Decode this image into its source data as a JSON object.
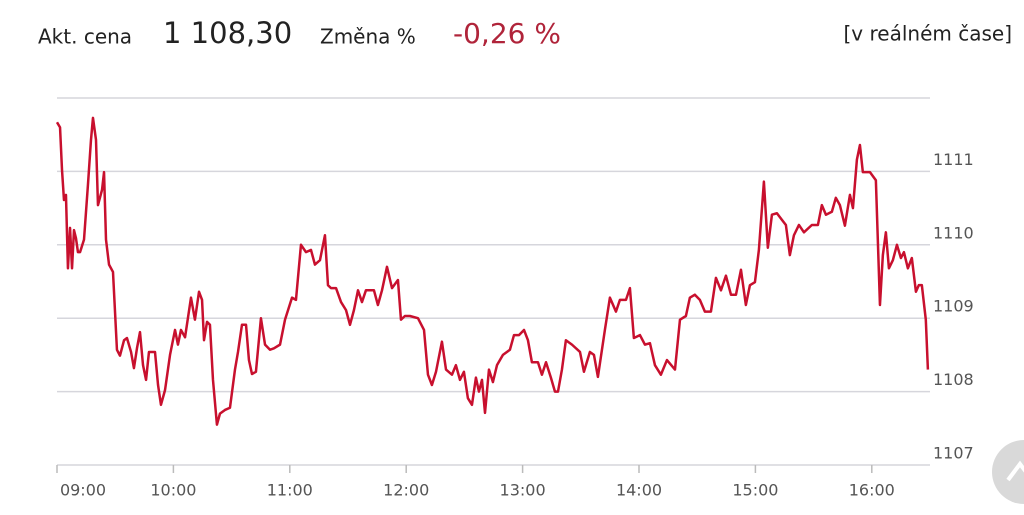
{
  "header": {
    "price_label": "Akt. cena",
    "price": "1 108,30",
    "change_label": "Změna %",
    "change": "-0,26 %",
    "mode": "[v reálném čase]"
  },
  "chart_data": {
    "type": "line",
    "color": "#c8102e",
    "grid": true,
    "xlim": [
      9,
      16.5
    ],
    "ylim": [
      1107,
      1112
    ],
    "xticks": [
      {
        "value": 9,
        "label": "09:00"
      },
      {
        "value": 10,
        "label": "10:00"
      },
      {
        "value": 11,
        "label": "11:00"
      },
      {
        "value": 12,
        "label": "12:00"
      },
      {
        "value": 13,
        "label": "13:00"
      },
      {
        "value": 14,
        "label": "14:00"
      },
      {
        "value": 15,
        "label": "15:00"
      },
      {
        "value": 16,
        "label": "16:00"
      }
    ],
    "yticks": [
      1107,
      1108,
      1109,
      1110,
      1111
    ],
    "x": [
      9.0,
      9.026,
      9.043,
      9.06,
      9.077,
      9.094,
      9.112,
      9.129,
      9.146,
      9.163,
      9.18,
      9.198,
      9.232,
      9.266,
      9.292,
      9.309,
      9.335,
      9.352,
      9.387,
      9.404,
      9.421,
      9.447,
      9.481,
      9.515,
      9.541,
      9.576,
      9.601,
      9.636,
      9.661,
      9.687,
      9.713,
      9.739,
      9.765,
      9.79,
      9.842,
      9.868,
      9.893,
      9.928,
      9.971,
      10.014,
      10.039,
      10.065,
      10.1,
      10.151,
      10.185,
      10.22,
      10.246,
      10.263,
      10.289,
      10.314,
      10.34,
      10.374,
      10.4,
      10.443,
      10.486,
      10.529,
      10.555,
      10.589,
      10.624,
      10.649,
      10.675,
      10.709,
      10.752,
      10.787,
      10.83,
      10.864,
      10.916,
      10.959,
      11.019,
      11.053,
      11.096,
      11.139,
      11.182,
      11.216,
      11.259,
      11.302,
      11.328,
      11.354,
      11.397,
      11.44,
      11.483,
      11.517,
      11.551,
      11.586,
      11.62,
      11.654,
      11.723,
      11.757,
      11.792,
      11.835,
      11.878,
      11.929,
      11.955,
      11.989,
      12.032,
      12.101,
      12.153,
      12.187,
      12.221,
      12.256,
      12.307,
      12.342,
      12.393,
      12.427,
      12.462,
      12.496,
      12.53,
      12.565,
      12.599,
      12.625,
      12.651,
      12.677,
      12.711,
      12.745,
      12.78,
      12.831,
      12.891,
      12.926,
      12.969,
      13.012,
      13.046,
      13.08,
      13.132,
      13.166,
      13.201,
      13.243,
      13.278,
      13.304,
      13.338,
      13.372,
      13.424,
      13.493,
      13.527,
      13.578,
      13.613,
      13.647,
      13.707,
      13.75,
      13.802,
      13.836,
      13.888,
      13.922,
      13.956,
      14.008,
      14.051,
      14.094,
      14.137,
      14.188,
      14.24,
      14.309,
      14.352,
      14.403,
      14.437,
      14.48,
      14.523,
      14.566,
      14.618,
      14.661,
      14.704,
      14.747,
      14.79,
      14.833,
      14.876,
      14.918,
      14.953,
      14.996,
      15.03,
      15.073,
      15.107,
      15.142,
      15.185,
      15.228,
      15.262,
      15.296,
      15.331,
      15.374,
      15.417,
      15.485,
      15.537,
      15.571,
      15.606,
      15.657,
      15.691,
      15.726,
      15.769,
      15.812,
      15.838,
      15.872,
      15.898,
      15.923,
      15.984,
      16.035,
      16.07,
      16.095,
      16.121,
      16.147,
      16.181,
      16.216,
      16.25,
      16.276,
      16.31,
      16.344,
      16.379,
      16.404,
      16.43,
      16.464,
      16.482
    ],
    "series": [
      {
        "values": [
          1111.67,
          1111.6,
          1111.02,
          1110.61,
          1110.68,
          1109.68,
          1110.23,
          1109.68,
          1110.2,
          1110.09,
          1109.9,
          1109.9,
          1110.07,
          1110.82,
          1111.43,
          1111.73,
          1111.43,
          1110.54,
          1110.75,
          1110.99,
          1110.07,
          1109.73,
          1109.63,
          1108.57,
          1108.49,
          1108.7,
          1108.73,
          1108.54,
          1108.32,
          1108.59,
          1108.81,
          1108.36,
          1108.16,
          1108.54,
          1108.54,
          1108.09,
          1107.82,
          1108.02,
          1108.5,
          1108.84,
          1108.64,
          1108.84,
          1108.74,
          1109.28,
          1108.98,
          1109.36,
          1109.25,
          1108.7,
          1108.95,
          1108.91,
          1108.16,
          1107.55,
          1107.7,
          1107.75,
          1107.78,
          1108.3,
          1108.54,
          1108.91,
          1108.91,
          1108.43,
          1108.24,
          1108.27,
          1109.0,
          1108.64,
          1108.57,
          1108.59,
          1108.64,
          1108.98,
          1109.28,
          1109.25,
          1110.0,
          1109.9,
          1109.93,
          1109.73,
          1109.79,
          1110.13,
          1109.45,
          1109.41,
          1109.41,
          1109.22,
          1109.11,
          1108.91,
          1109.11,
          1109.38,
          1109.22,
          1109.38,
          1109.38,
          1109.18,
          1109.38,
          1109.7,
          1109.41,
          1109.52,
          1108.98,
          1109.03,
          1109.03,
          1109.0,
          1108.84,
          1108.23,
          1108.09,
          1108.27,
          1108.68,
          1108.3,
          1108.23,
          1108.36,
          1108.16,
          1108.27,
          1107.91,
          1107.82,
          1108.19,
          1108.0,
          1108.16,
          1107.71,
          1108.3,
          1108.13,
          1108.36,
          1108.5,
          1108.57,
          1108.77,
          1108.77,
          1108.84,
          1108.7,
          1108.4,
          1108.4,
          1108.23,
          1108.4,
          1108.19,
          1108.0,
          1108.0,
          1108.3,
          1108.7,
          1108.64,
          1108.54,
          1108.27,
          1108.54,
          1108.5,
          1108.2,
          1108.84,
          1109.28,
          1109.09,
          1109.25,
          1109.25,
          1109.41,
          1108.73,
          1108.77,
          1108.64,
          1108.66,
          1108.36,
          1108.23,
          1108.43,
          1108.3,
          1108.98,
          1109.03,
          1109.28,
          1109.32,
          1109.25,
          1109.09,
          1109.09,
          1109.55,
          1109.38,
          1109.58,
          1109.32,
          1109.32,
          1109.66,
          1109.18,
          1109.45,
          1109.49,
          1109.93,
          1110.86,
          1109.96,
          1110.41,
          1110.43,
          1110.34,
          1110.27,
          1109.86,
          1110.13,
          1110.27,
          1110.17,
          1110.27,
          1110.27,
          1110.54,
          1110.41,
          1110.45,
          1110.64,
          1110.54,
          1110.26,
          1110.68,
          1110.5,
          1111.16,
          1111.36,
          1110.99,
          1110.99,
          1110.88,
          1109.18,
          1109.86,
          1110.17,
          1109.68,
          1109.79,
          1110.0,
          1109.82,
          1109.9,
          1109.68,
          1109.82,
          1109.36,
          1109.45,
          1109.45,
          1108.98,
          1108.3
        ]
      }
    ]
  }
}
